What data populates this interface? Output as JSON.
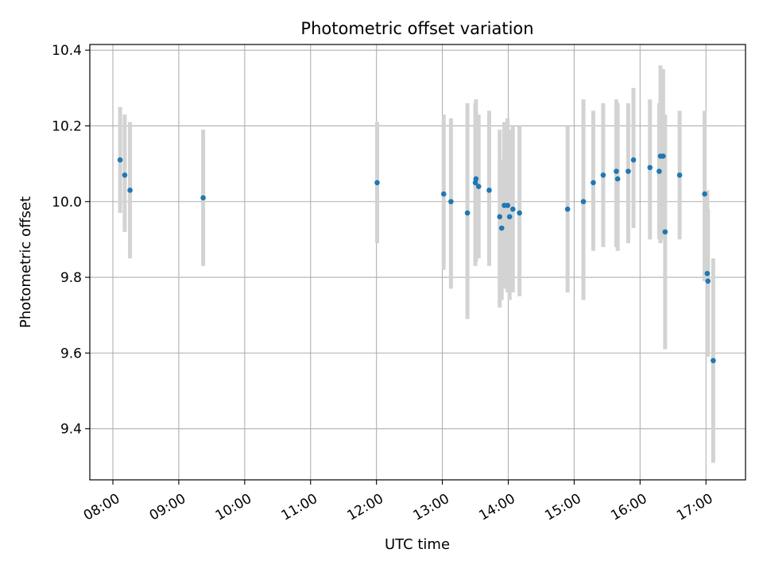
{
  "chart_data": {
    "type": "scatter",
    "title": "Photometric offset variation",
    "xlabel": "UTC time",
    "ylabel": "Photometric offset",
    "x_unit": "hours UTC",
    "xlim": [
      7.65,
      17.6
    ],
    "ylim": [
      9.265,
      10.415
    ],
    "x_ticks": [
      {
        "value": 8,
        "label": "08:00"
      },
      {
        "value": 9,
        "label": "09:00"
      },
      {
        "value": 10,
        "label": "10:00"
      },
      {
        "value": 11,
        "label": "11:00"
      },
      {
        "value": 12,
        "label": "12:00"
      },
      {
        "value": 13,
        "label": "13:00"
      },
      {
        "value": 14,
        "label": "14:00"
      },
      {
        "value": 15,
        "label": "15:00"
      },
      {
        "value": 16,
        "label": "16:00"
      },
      {
        "value": 17,
        "label": "17:00"
      }
    ],
    "y_ticks": [
      {
        "value": 9.4,
        "label": "9.4"
      },
      {
        "value": 9.6,
        "label": "9.6"
      },
      {
        "value": 9.8,
        "label": "9.8"
      },
      {
        "value": 10.0,
        "label": "10.0"
      },
      {
        "value": 10.2,
        "label": "10.2"
      },
      {
        "value": 10.4,
        "label": "10.4"
      }
    ],
    "grid": true,
    "legend": "none",
    "point_color": "#1f77b4",
    "errorbar_color": "#d3d3d3",
    "points": [
      {
        "x": 8.11,
        "y": 10.11,
        "err_low": 9.97,
        "err_high": 10.25
      },
      {
        "x": 8.18,
        "y": 10.07,
        "err_low": 9.92,
        "err_high": 10.23
      },
      {
        "x": 8.26,
        "y": 10.03,
        "err_low": 9.85,
        "err_high": 10.21
      },
      {
        "x": 9.37,
        "y": 10.01,
        "err_low": 9.83,
        "err_high": 10.19
      },
      {
        "x": 12.01,
        "y": 10.05,
        "err_low": 9.89,
        "err_high": 10.21
      },
      {
        "x": 13.02,
        "y": 10.02,
        "err_low": 9.82,
        "err_high": 10.23
      },
      {
        "x": 13.13,
        "y": 10.0,
        "err_low": 9.77,
        "err_high": 10.22
      },
      {
        "x": 13.38,
        "y": 9.97,
        "err_low": 9.69,
        "err_high": 10.26
      },
      {
        "x": 13.5,
        "y": 10.05,
        "err_low": 9.83,
        "err_high": 10.26
      },
      {
        "x": 13.51,
        "y": 10.06,
        "err_low": 9.84,
        "err_high": 10.27
      },
      {
        "x": 13.55,
        "y": 10.04,
        "err_low": 9.85,
        "err_high": 10.23
      },
      {
        "x": 13.71,
        "y": 10.03,
        "err_low": 9.83,
        "err_high": 10.24
      },
      {
        "x": 13.87,
        "y": 9.96,
        "err_low": 9.72,
        "err_high": 10.19
      },
      {
        "x": 13.9,
        "y": 9.93,
        "err_low": 9.74,
        "err_high": 10.11
      },
      {
        "x": 13.94,
        "y": 9.99,
        "err_low": 9.77,
        "err_high": 10.21
      },
      {
        "x": 13.99,
        "y": 9.99,
        "err_low": 9.76,
        "err_high": 10.22
      },
      {
        "x": 14.02,
        "y": 9.96,
        "err_low": 9.74,
        "err_high": 10.19
      },
      {
        "x": 14.07,
        "y": 9.98,
        "err_low": 9.76,
        "err_high": 10.2
      },
      {
        "x": 14.17,
        "y": 9.97,
        "err_low": 9.75,
        "err_high": 10.2
      },
      {
        "x": 14.9,
        "y": 9.98,
        "err_low": 9.76,
        "err_high": 10.2
      },
      {
        "x": 15.14,
        "y": 10.0,
        "err_low": 9.74,
        "err_high": 10.27
      },
      {
        "x": 15.29,
        "y": 10.05,
        "err_low": 9.87,
        "err_high": 10.24
      },
      {
        "x": 15.44,
        "y": 10.07,
        "err_low": 9.88,
        "err_high": 10.26
      },
      {
        "x": 15.64,
        "y": 10.08,
        "err_low": 9.88,
        "err_high": 10.27
      },
      {
        "x": 15.66,
        "y": 10.06,
        "err_low": 9.87,
        "err_high": 10.26
      },
      {
        "x": 15.82,
        "y": 10.08,
        "err_low": 9.89,
        "err_high": 10.26
      },
      {
        "x": 15.9,
        "y": 10.11,
        "err_low": 9.93,
        "err_high": 10.3
      },
      {
        "x": 16.15,
        "y": 10.09,
        "err_low": 9.9,
        "err_high": 10.27
      },
      {
        "x": 16.29,
        "y": 10.08,
        "err_low": 9.9,
        "err_high": 10.26
      },
      {
        "x": 16.31,
        "y": 10.12,
        "err_low": 9.89,
        "err_high": 10.36
      },
      {
        "x": 16.35,
        "y": 10.12,
        "err_low": 9.9,
        "err_high": 10.35
      },
      {
        "x": 16.38,
        "y": 9.92,
        "err_low": 9.61,
        "err_high": 10.23
      },
      {
        "x": 16.6,
        "y": 10.07,
        "err_low": 9.9,
        "err_high": 10.24
      },
      {
        "x": 16.98,
        "y": 10.02,
        "err_low": 9.79,
        "err_high": 10.24
      },
      {
        "x": 17.02,
        "y": 9.81,
        "err_low": 9.6,
        "err_high": 10.03
      },
      {
        "x": 17.03,
        "y": 9.79,
        "err_low": 9.59,
        "err_high": 9.98
      },
      {
        "x": 17.11,
        "y": 9.58,
        "err_low": 9.31,
        "err_high": 9.85
      }
    ]
  }
}
